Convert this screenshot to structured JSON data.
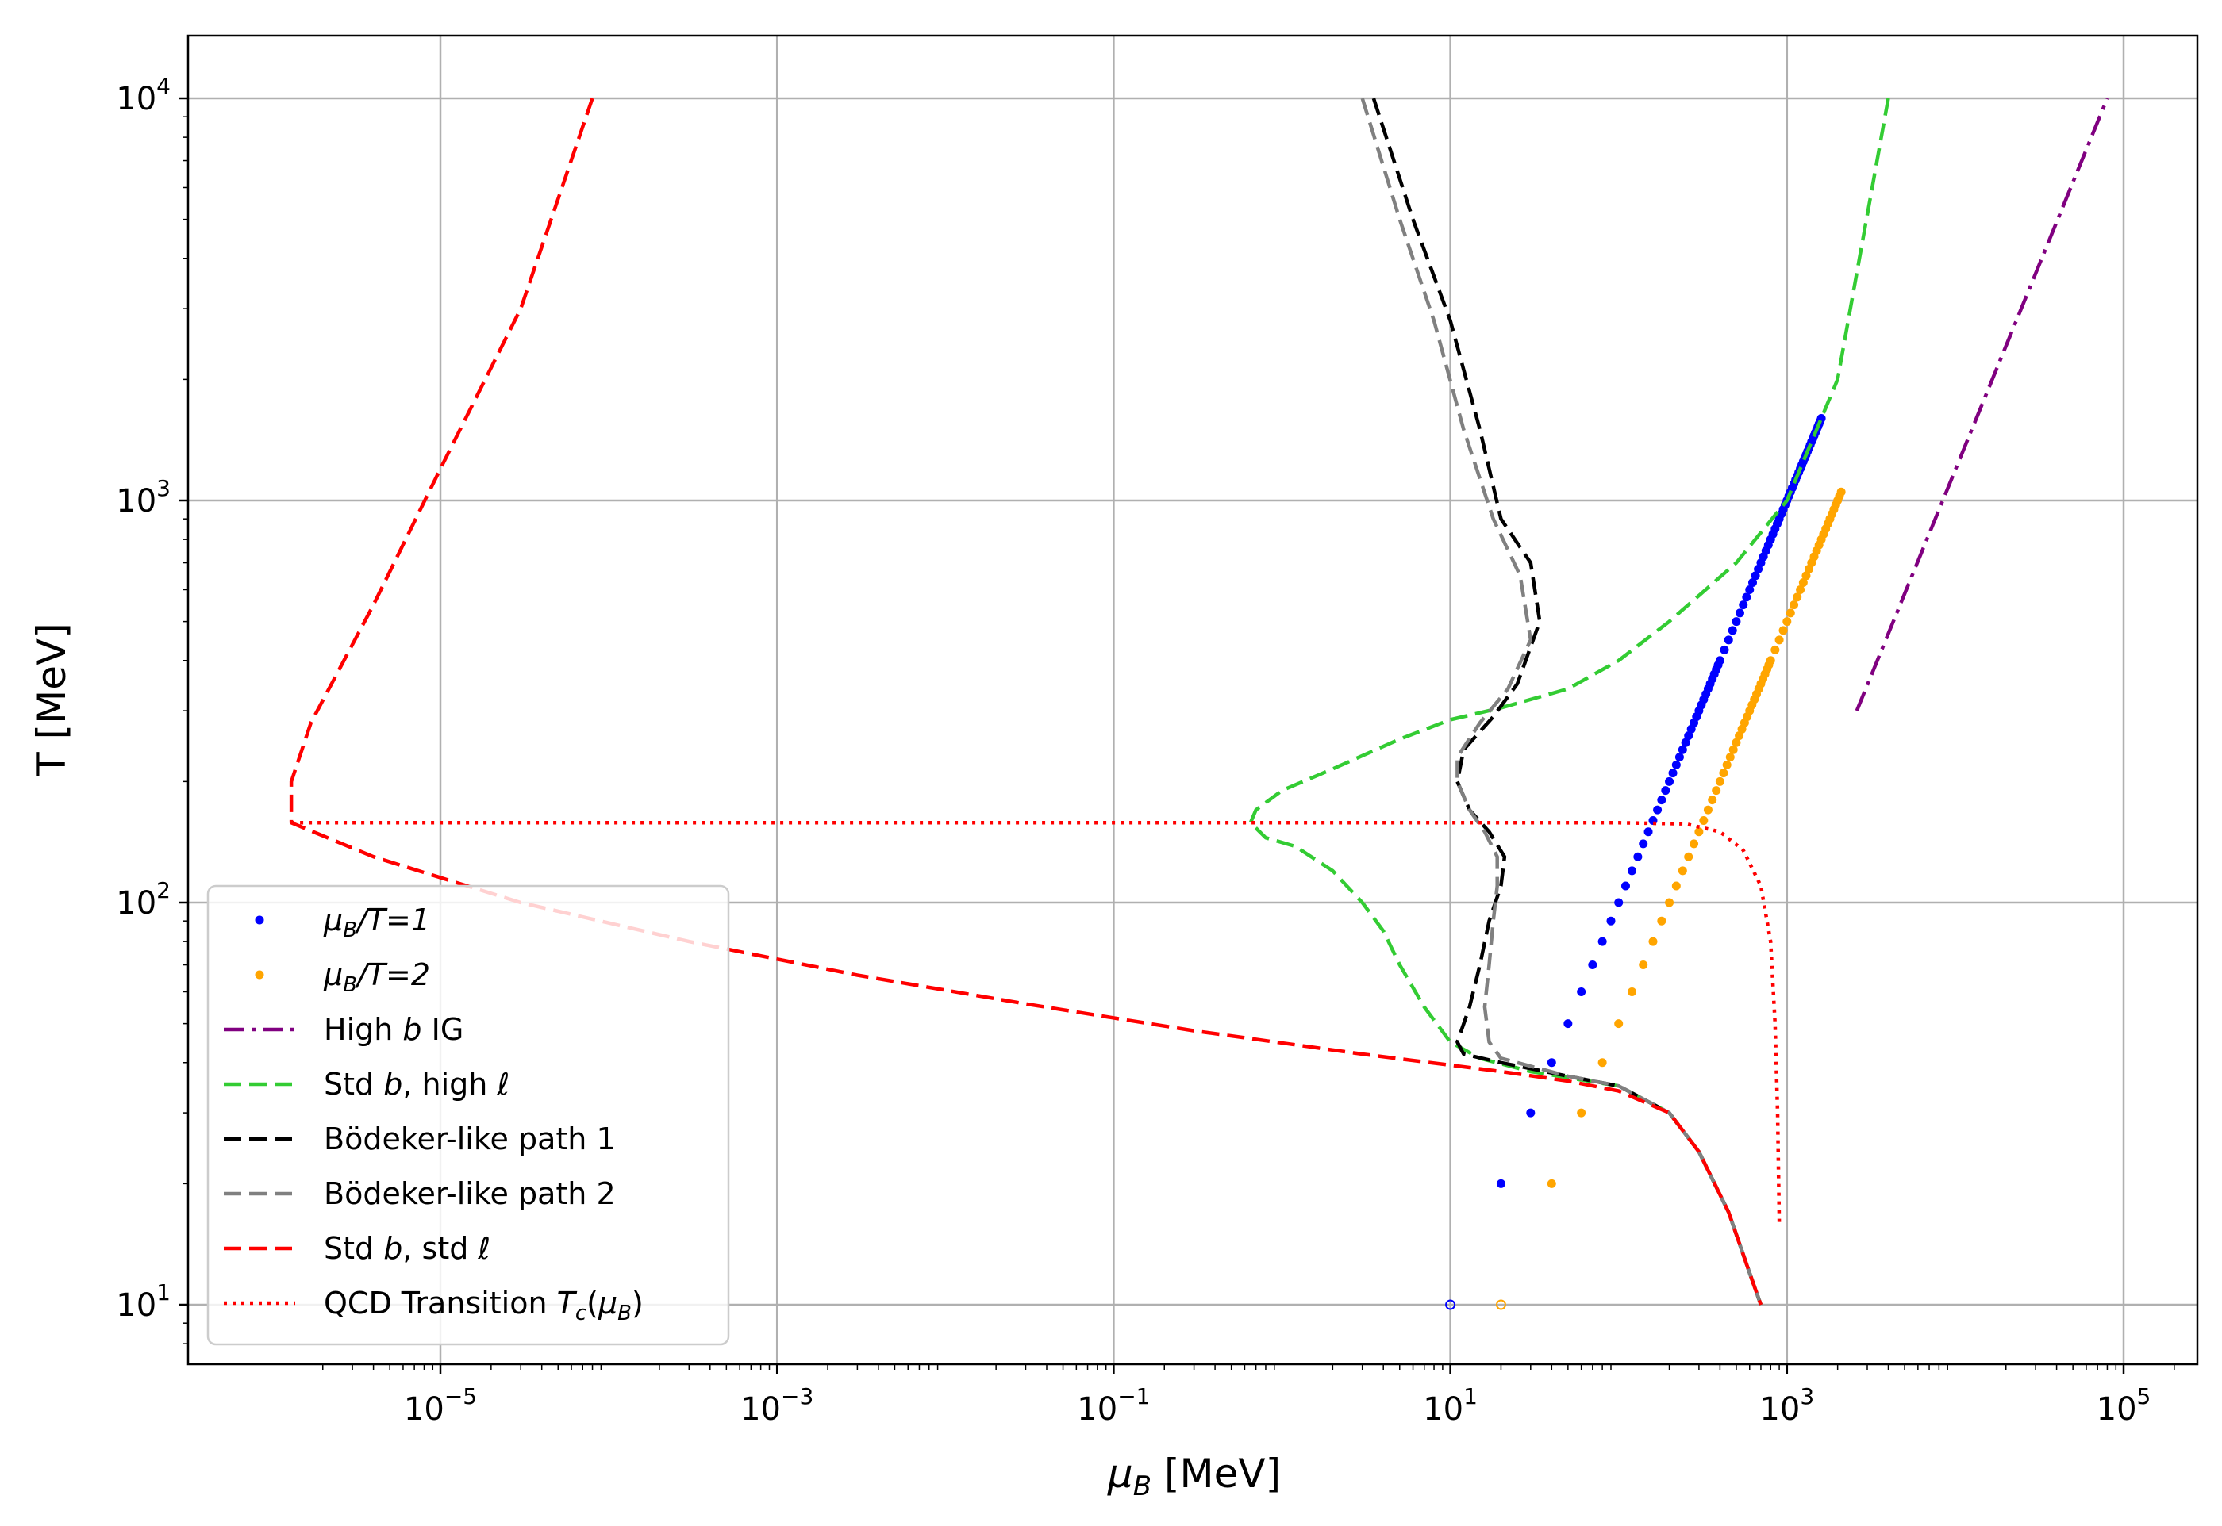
{
  "chart_data": {
    "type": "line",
    "xlabel": "μB [MeV]",
    "ylabel": "T [MeV]",
    "xscale": "log",
    "yscale": "log",
    "xlim": [
      1e-06,
      300000.0
    ],
    "ylim": [
      7,
      14000
    ],
    "grid": true,
    "legend_position": "lower-left",
    "x_ticks": [
      {
        "base": "10",
        "exp": "−5",
        "value": 1e-05
      },
      {
        "base": "10",
        "exp": "−3",
        "value": 0.001
      },
      {
        "base": "10",
        "exp": "−1",
        "value": 0.1
      },
      {
        "base": "10",
        "exp": "1",
        "value": 10
      },
      {
        "base": "10",
        "exp": "3",
        "value": 1000
      },
      {
        "base": "10",
        "exp": "5",
        "value": 100000
      }
    ],
    "y_ticks": [
      {
        "base": "10",
        "exp": "1",
        "value": 10
      },
      {
        "base": "10",
        "exp": "2",
        "value": 100
      },
      {
        "base": "10",
        "exp": "3",
        "value": 1000
      },
      {
        "base": "10",
        "exp": "4",
        "value": 10000
      }
    ],
    "series": [
      {
        "name": "μB/T=1",
        "kind": "points",
        "color": "#0000ff",
        "y_range": [
          10,
          1600
        ],
        "ratio": 1
      },
      {
        "name": "μB/T=2",
        "kind": "points",
        "color": "#ffa500",
        "y_range": [
          10,
          1050
        ],
        "ratio": 2
      },
      {
        "name": "High b IG",
        "kind": "line",
        "style": "dashdot",
        "color": "#800080",
        "points": [
          [
            2600,
            300
          ],
          [
            80000,
            10000
          ]
        ]
      },
      {
        "name": "Std b, high ℓ",
        "kind": "line",
        "style": "dashed",
        "color": "#33cc33",
        "points": [
          [
            4000,
            10000
          ],
          [
            2000,
            2000
          ],
          [
            1000,
            1000
          ],
          [
            500,
            700
          ],
          [
            200,
            500
          ],
          [
            100,
            400
          ],
          [
            50,
            340
          ],
          [
            20,
            305
          ],
          [
            10,
            285
          ],
          [
            5,
            255
          ],
          [
            2,
            215
          ],
          [
            1,
            190
          ],
          [
            0.7,
            170
          ],
          [
            0.65,
            158
          ],
          [
            0.8,
            145
          ],
          [
            1.2,
            138
          ],
          [
            2,
            120
          ],
          [
            3,
            100
          ],
          [
            4,
            85
          ],
          [
            5,
            70
          ],
          [
            7,
            55
          ],
          [
            10,
            45
          ],
          [
            15,
            41
          ],
          [
            30,
            38
          ],
          [
            100,
            35
          ],
          [
            200,
            30
          ],
          [
            300,
            24
          ],
          [
            450,
            17
          ],
          [
            600,
            12
          ],
          [
            700,
            10
          ]
        ]
      },
      {
        "name": "Bödeker-like path 1",
        "kind": "line",
        "style": "dashed",
        "color": "#000000",
        "points": [
          [
            3.5,
            10000
          ],
          [
            6,
            5000
          ],
          [
            10,
            2800
          ],
          [
            15,
            1500
          ],
          [
            20,
            900
          ],
          [
            30,
            700
          ],
          [
            34,
            500
          ],
          [
            25,
            350
          ],
          [
            18,
            290
          ],
          [
            12,
            240
          ],
          [
            11,
            200
          ],
          [
            13,
            170
          ],
          [
            17,
            150
          ],
          [
            21,
            130
          ],
          [
            20,
            110
          ],
          [
            17,
            90
          ],
          [
            15,
            70
          ],
          [
            13,
            55
          ],
          [
            11,
            45
          ],
          [
            12,
            42
          ],
          [
            20,
            40
          ],
          [
            50,
            37
          ],
          [
            100,
            35
          ],
          [
            200,
            30
          ],
          [
            300,
            24
          ],
          [
            450,
            17
          ],
          [
            600,
            12
          ],
          [
            700,
            10
          ]
        ]
      },
      {
        "name": "Bödeker-like path 2",
        "kind": "line",
        "style": "dashed",
        "color": "#808080",
        "points": [
          [
            3,
            10000
          ],
          [
            5,
            5000
          ],
          [
            8,
            2800
          ],
          [
            12,
            1500
          ],
          [
            18,
            900
          ],
          [
            26,
            650
          ],
          [
            30,
            450
          ],
          [
            22,
            340
          ],
          [
            15,
            280
          ],
          [
            11,
            230
          ],
          [
            11,
            200
          ],
          [
            13,
            170
          ],
          [
            16,
            150
          ],
          [
            19,
            130
          ],
          [
            19,
            110
          ],
          [
            18,
            90
          ],
          [
            17,
            70
          ],
          [
            16,
            55
          ],
          [
            17,
            45
          ],
          [
            20,
            41
          ],
          [
            50,
            37
          ],
          [
            100,
            35
          ],
          [
            200,
            30
          ],
          [
            300,
            24
          ],
          [
            450,
            17
          ],
          [
            600,
            12
          ],
          [
            700,
            10
          ]
        ]
      },
      {
        "name": "Std b, std ℓ",
        "kind": "line",
        "style": "dashed",
        "color": "#ff0000",
        "points": [
          [
            8e-05,
            10000
          ],
          [
            3e-05,
            3000
          ],
          [
            1e-05,
            1200
          ],
          [
            4e-06,
            550
          ],
          [
            1.7e-06,
            280
          ],
          [
            1.3e-06,
            200
          ],
          [
            1.3e-06,
            158
          ],
          [
            4e-06,
            130
          ],
          [
            3e-05,
            100
          ],
          [
            0.0003,
            80
          ],
          [
            0.003,
            66
          ],
          [
            0.03,
            56
          ],
          [
            0.3,
            48
          ],
          [
            3,
            42
          ],
          [
            20,
            38
          ],
          [
            50,
            36
          ],
          [
            100,
            34
          ],
          [
            200,
            30
          ],
          [
            300,
            24
          ],
          [
            450,
            17
          ],
          [
            600,
            12
          ],
          [
            700,
            10
          ]
        ]
      },
      {
        "name": "QCD Transition Tc(μB)",
        "kind": "line",
        "style": "dotted",
        "color": "#ff0000",
        "points": [
          [
            1.3e-06,
            158
          ],
          [
            1,
            158
          ],
          [
            100,
            158
          ],
          [
            250,
            157
          ],
          [
            400,
            150
          ],
          [
            550,
            135
          ],
          [
            700,
            110
          ],
          [
            800,
            80
          ],
          [
            850,
            50
          ],
          [
            880,
            30
          ],
          [
            900,
            16
          ]
        ]
      }
    ]
  },
  "legend": [
    {
      "key": "p1",
      "main": "μ",
      "sub": "B",
      "rest": "/T=1"
    },
    {
      "key": "p2",
      "main": "μ",
      "sub": "B",
      "rest": "/T=2"
    },
    {
      "key": "ig",
      "pre": "High ",
      "ital": "b",
      "post": " IG"
    },
    {
      "key": "stdhigh",
      "pre": "Std ",
      "ital": "b",
      "post": ", high ",
      "ital2": "ℓ"
    },
    {
      "key": "bod1",
      "text": "Bödeker-like path 1"
    },
    {
      "key": "bod2",
      "text": "Bödeker-like path 2"
    },
    {
      "key": "stdstd",
      "pre": "Std ",
      "ital": "b",
      "post": ", std ",
      "ital2": "ℓ"
    },
    {
      "key": "qcd",
      "pre": "QCD Transition ",
      "ital": "T",
      "sub": "c",
      "mid": "(",
      "ital3": "μ",
      "sub2": "B",
      "end": ")"
    }
  ]
}
